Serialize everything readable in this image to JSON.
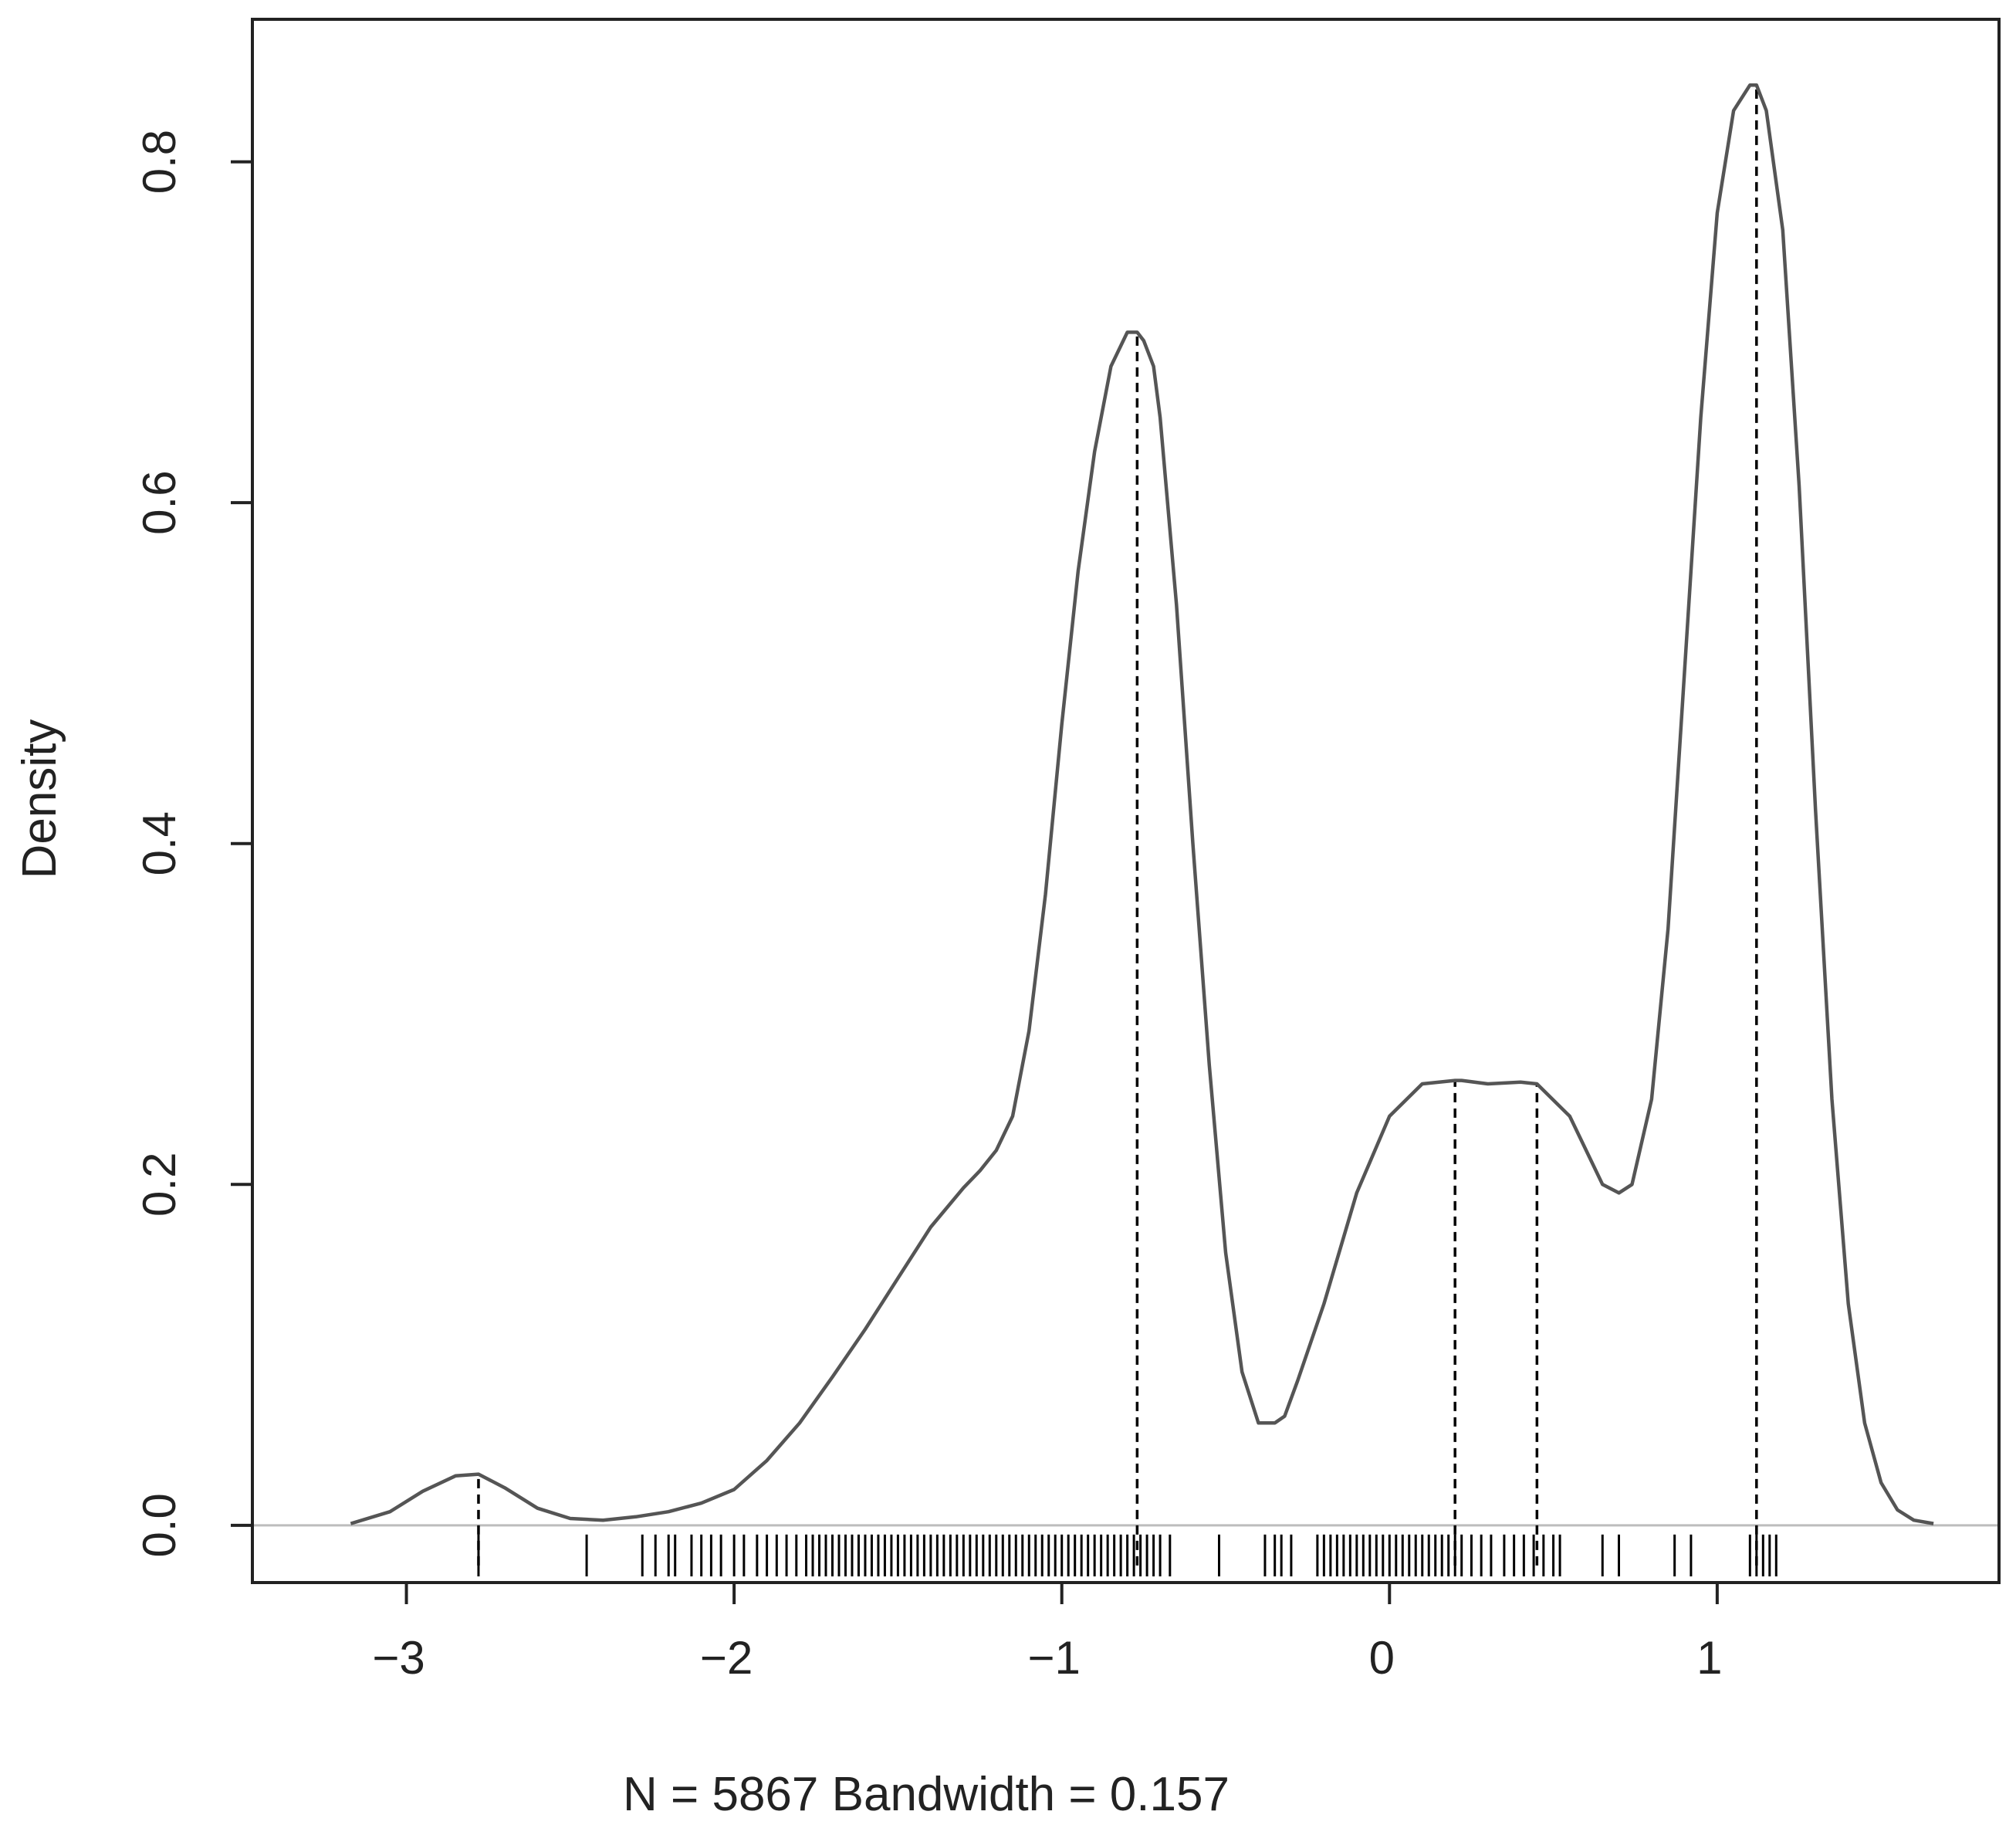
{
  "chart_data": {
    "type": "line",
    "title": "",
    "xlabel": "N = 5867   Bandwidth = 0.157",
    "ylabel": "Density",
    "xlim": [
      -3.47,
      1.86
    ],
    "ylim": [
      -0.0336,
      0.8836
    ],
    "x_ticks": [
      -3,
      -2,
      -1,
      0,
      1
    ],
    "x_tick_labels": [
      "−3",
      "−2",
      "−1",
      "0",
      "1"
    ],
    "y_ticks": [
      0.0,
      0.2,
      0.4,
      0.6,
      0.8
    ],
    "y_tick_labels": [
      "0.0",
      "0.2",
      "0.4",
      "0.6",
      "0.8"
    ],
    "grid": false,
    "zero_reference_line": true,
    "series": [
      {
        "x": [
          -3.17,
          -3.05,
          -2.95,
          -2.85,
          -2.78,
          -2.7,
          -2.6,
          -2.5,
          -2.4,
          -2.3,
          -2.2,
          -2.1,
          -2.0,
          -1.9,
          -1.8,
          -1.7,
          -1.6,
          -1.5,
          -1.4,
          -1.3,
          -1.25,
          -1.2,
          -1.15,
          -1.1,
          -1.05,
          -1.0,
          -0.95,
          -0.9,
          -0.85,
          -0.8,
          -0.77,
          -0.75,
          -0.72,
          -0.7,
          -0.65,
          -0.6,
          -0.55,
          -0.5,
          -0.45,
          -0.4,
          -0.35,
          -0.32,
          -0.28,
          -0.2,
          -0.1,
          0.0,
          0.1,
          0.2,
          0.22,
          0.3,
          0.4,
          0.45,
          0.55,
          0.65,
          0.7,
          0.74,
          0.8,
          0.85,
          0.9,
          0.95,
          1.0,
          1.05,
          1.1,
          1.12,
          1.15,
          1.2,
          1.25,
          1.3,
          1.35,
          1.4,
          1.45,
          1.5,
          1.55,
          1.6,
          1.66
        ],
        "y": [
          0.001,
          0.008,
          0.02,
          0.029,
          0.03,
          0.022,
          0.01,
          0.004,
          0.003,
          0.005,
          0.008,
          0.013,
          0.021,
          0.038,
          0.06,
          0.087,
          0.115,
          0.145,
          0.175,
          0.198,
          0.208,
          0.22,
          0.24,
          0.29,
          0.37,
          0.47,
          0.56,
          0.63,
          0.68,
          0.7,
          0.7,
          0.695,
          0.68,
          0.65,
          0.54,
          0.4,
          0.27,
          0.16,
          0.09,
          0.06,
          0.06,
          0.064,
          0.085,
          0.13,
          0.195,
          0.24,
          0.259,
          0.261,
          0.261,
          0.259,
          0.26,
          0.259,
          0.24,
          0.2,
          0.195,
          0.2,
          0.25,
          0.35,
          0.5,
          0.65,
          0.77,
          0.83,
          0.845,
          0.845,
          0.83,
          0.76,
          0.61,
          0.42,
          0.25,
          0.13,
          0.06,
          0.025,
          0.009,
          0.003,
          0.001
        ]
      }
    ],
    "mode_lines": [
      {
        "x": -2.78,
        "y": 0.03
      },
      {
        "x": -0.77,
        "y": 0.7
      },
      {
        "x": 0.2,
        "y": 0.261
      },
      {
        "x": 0.45,
        "y": 0.259
      },
      {
        "x": 1.12,
        "y": 0.845
      }
    ],
    "rug": [
      -2.78,
      -2.45,
      -2.28,
      -2.24,
      -2.2,
      -2.18,
      -2.13,
      -2.1,
      -2.07,
      -2.04,
      -2.0,
      -1.97,
      -1.93,
      -1.9,
      -1.87,
      -1.84,
      -1.81,
      -1.78,
      -1.76,
      -1.74,
      -1.72,
      -1.7,
      -1.68,
      -1.66,
      -1.64,
      -1.62,
      -1.6,
      -1.58,
      -1.56,
      -1.54,
      -1.52,
      -1.5,
      -1.48,
      -1.46,
      -1.44,
      -1.42,
      -1.4,
      -1.38,
      -1.36,
      -1.34,
      -1.32,
      -1.3,
      -1.28,
      -1.26,
      -1.24,
      -1.22,
      -1.2,
      -1.18,
      -1.16,
      -1.14,
      -1.12,
      -1.1,
      -1.08,
      -1.06,
      -1.04,
      -1.02,
      -1.0,
      -0.98,
      -0.96,
      -0.94,
      -0.92,
      -0.9,
      -0.88,
      -0.86,
      -0.84,
      -0.82,
      -0.8,
      -0.78,
      -0.76,
      -0.74,
      -0.72,
      -0.7,
      -0.67,
      -0.52,
      -0.38,
      -0.35,
      -0.33,
      -0.3,
      -0.22,
      -0.2,
      -0.18,
      -0.16,
      -0.14,
      -0.12,
      -0.1,
      -0.08,
      -0.06,
      -0.04,
      -0.02,
      0.0,
      0.02,
      0.04,
      0.06,
      0.08,
      0.1,
      0.12,
      0.14,
      0.16,
      0.18,
      0.2,
      0.22,
      0.25,
      0.28,
      0.31,
      0.35,
      0.38,
      0.41,
      0.44,
      0.47,
      0.5,
      0.52,
      0.65,
      0.7,
      0.87,
      0.92,
      1.1,
      1.12,
      1.14,
      1.16,
      1.18
    ]
  }
}
